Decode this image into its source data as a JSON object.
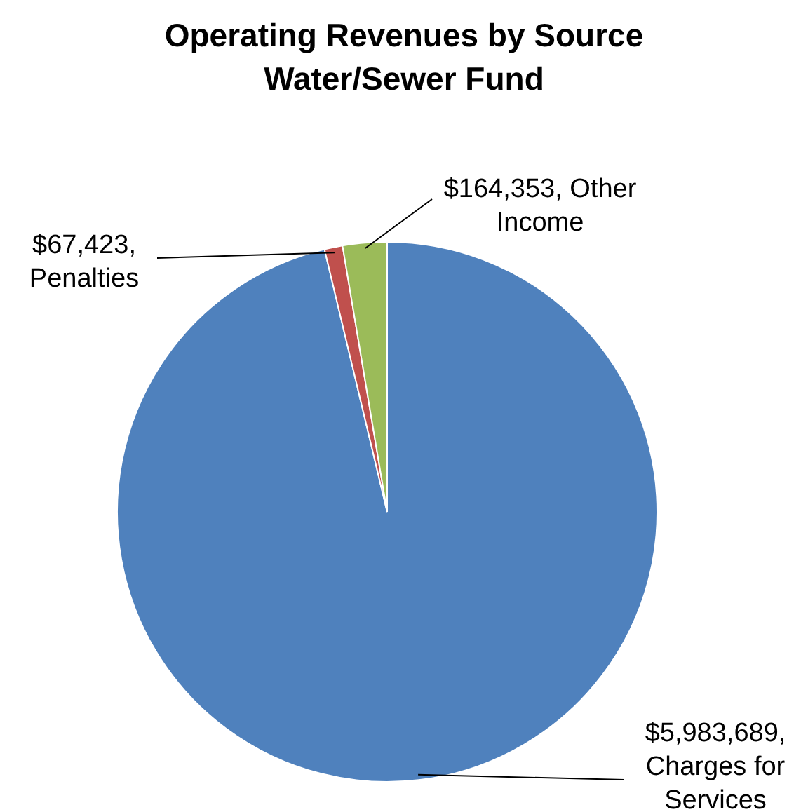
{
  "chart_data": {
    "type": "pie",
    "title": "Operating Revenues by Source\nWater/Sewer Fund",
    "categories": [
      "Charges for Services",
      "Penalties",
      "Other Income"
    ],
    "values": [
      5983689,
      67423,
      164353
    ],
    "value_labels": [
      "$5,983,689,",
      "$67,423,",
      "$164,353,"
    ],
    "colors": [
      "#4f81bd",
      "#c0504d",
      "#9bbb59"
    ],
    "legend": false
  }
}
